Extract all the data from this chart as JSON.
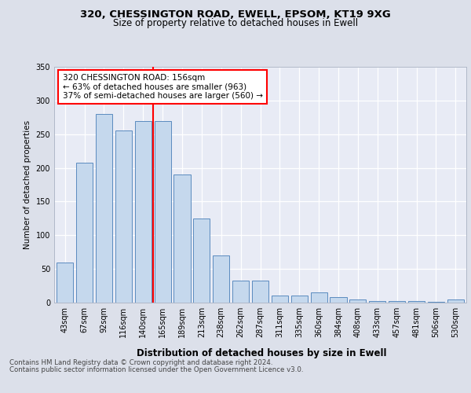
{
  "title1": "320, CHESSINGTON ROAD, EWELL, EPSOM, KT19 9XG",
  "title2": "Size of property relative to detached houses in Ewell",
  "xlabel": "Distribution of detached houses by size in Ewell",
  "ylabel": "Number of detached properties",
  "categories": [
    "43sqm",
    "67sqm",
    "92sqm",
    "116sqm",
    "140sqm",
    "165sqm",
    "189sqm",
    "213sqm",
    "238sqm",
    "262sqm",
    "287sqm",
    "311sqm",
    "335sqm",
    "360sqm",
    "384sqm",
    "408sqm",
    "433sqm",
    "457sqm",
    "481sqm",
    "506sqm",
    "530sqm"
  ],
  "values": [
    60,
    208,
    280,
    255,
    270,
    270,
    190,
    125,
    70,
    33,
    33,
    10,
    10,
    15,
    8,
    5,
    2,
    2,
    2,
    1,
    5
  ],
  "bar_color": "#c5d8ed",
  "bar_edge_color": "#5b8bbf",
  "annotation_text": "320 CHESSINGTON ROAD: 156sqm\n← 63% of detached houses are smaller (963)\n37% of semi-detached houses are larger (560) →",
  "annotation_box_color": "white",
  "annotation_box_edge": "red",
  "vline_x_idx": 4.5,
  "vline_color": "red",
  "footer1": "Contains HM Land Registry data © Crown copyright and database right 2024.",
  "footer2": "Contains public sector information licensed under the Open Government Licence v3.0.",
  "background_color": "#dce0ea",
  "plot_bg_color": "#e8ebf5",
  "grid_color": "#ffffff",
  "ylim": [
    0,
    350
  ],
  "yticks": [
    0,
    50,
    100,
    150,
    200,
    250,
    300,
    350
  ],
  "title1_fontsize": 9.5,
  "title2_fontsize": 8.5,
  "ylabel_fontsize": 7.5,
  "xlabel_fontsize": 8.5,
  "tick_fontsize": 7,
  "footer_fontsize": 6.2,
  "annot_fontsize": 7.5
}
